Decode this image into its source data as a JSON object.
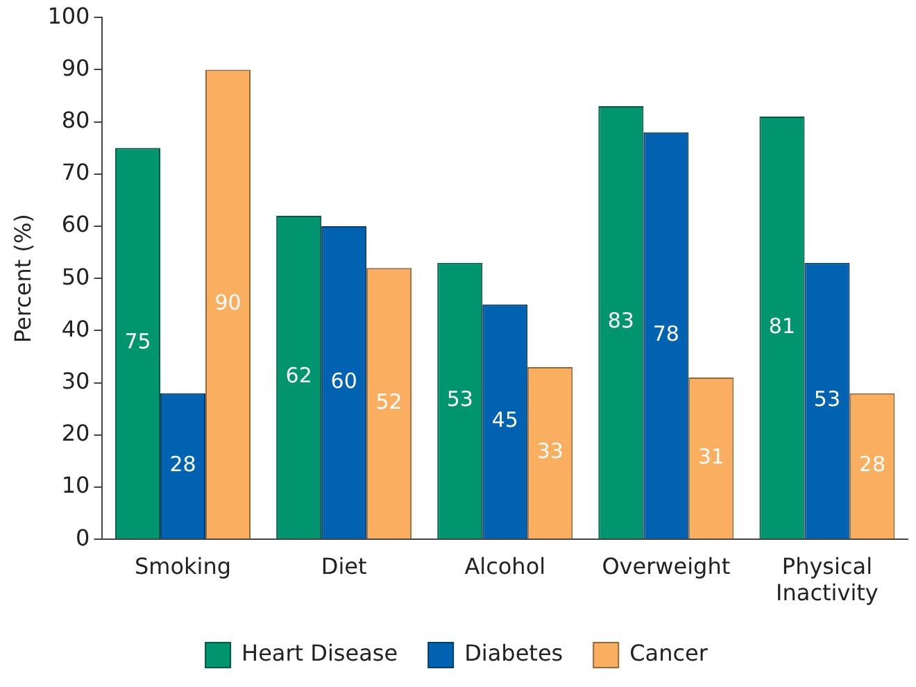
{
  "chart_data": {
    "type": "bar",
    "ylabel": "Percent (%)",
    "categories": [
      "Smoking",
      "Diet",
      "Alcohol",
      "Overweight",
      "Physical Inactivity"
    ],
    "series": [
      {
        "name": "Heart Disease",
        "color": "#00956e",
        "values": [
          75,
          62,
          53,
          83,
          81
        ]
      },
      {
        "name": "Diabetes",
        "color": "#0062b1",
        "values": [
          28,
          60,
          45,
          78,
          53
        ]
      },
      {
        "name": "Cancer",
        "color": "#f9ae60",
        "values": [
          90,
          52,
          33,
          31,
          28
        ]
      }
    ],
    "ylim": [
      0,
      100
    ],
    "yticks": [
      0,
      10,
      20,
      30,
      40,
      50,
      60,
      70,
      80,
      90,
      100
    ],
    "grid": false,
    "legend": "bottom",
    "data_labels": true
  }
}
